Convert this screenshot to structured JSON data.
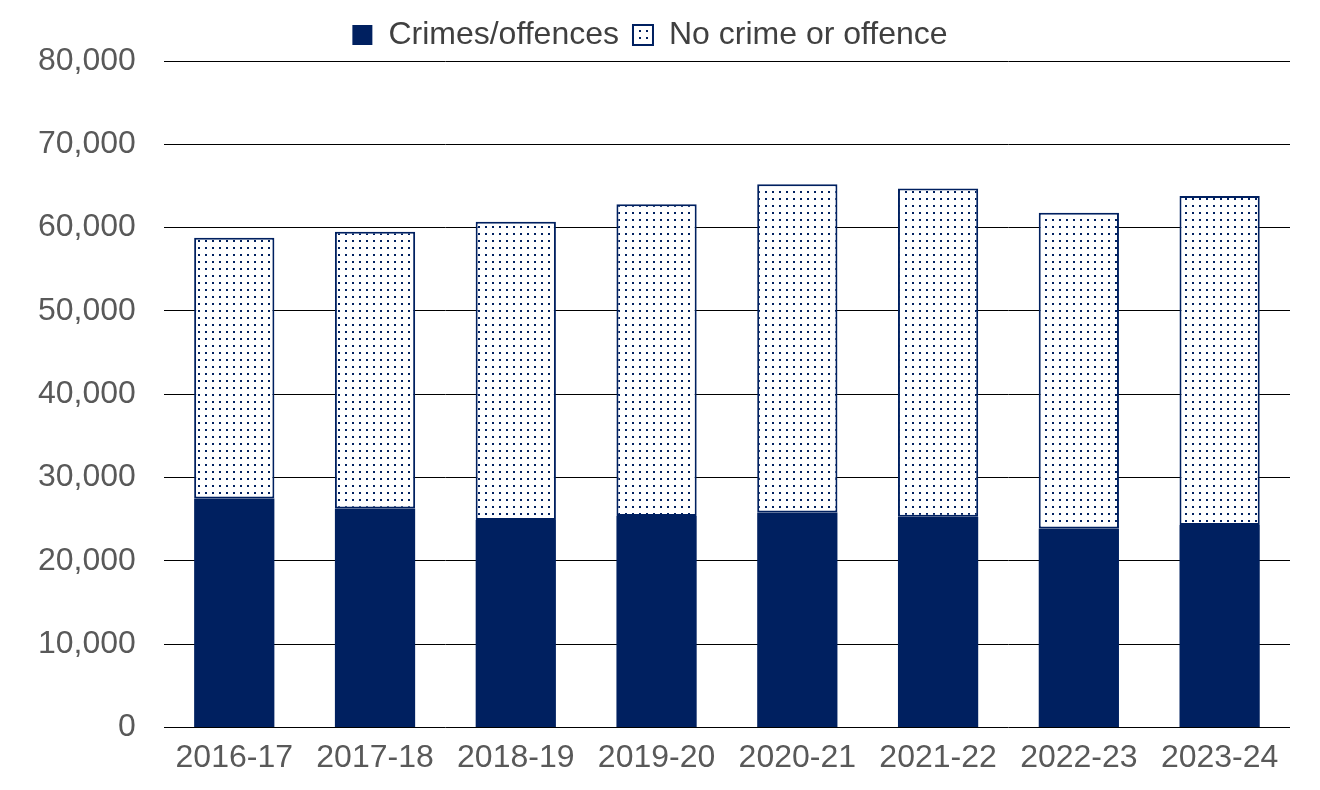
{
  "chart_data": {
    "type": "bar",
    "stacked": true,
    "grid": true,
    "legend": "top",
    "categories": [
      "2016-17",
      "2017-18",
      "2018-19",
      "2019-20",
      "2020-21",
      "2021-22",
      "2022-23",
      "2023-24"
    ],
    "series": [
      {
        "name": "Crimes/offences",
        "color": "#002060",
        "values": [
          27500,
          26300,
          24900,
          25400,
          25800,
          25300,
          23900,
          24300
        ]
      },
      {
        "name": "No crime or offence",
        "color": "#002060",
        "values": [
          31300,
          33200,
          35800,
          37400,
          39400,
          39400,
          37900,
          39500
        ]
      }
    ],
    "ylim": [
      0,
      80000
    ],
    "yticks": [
      0,
      {
        "value": 10000,
        "label": "10,000"
      },
      {
        "value": 20000,
        "label": "20,000"
      },
      {
        "value": 30000,
        "label": "30,000"
      },
      {
        "value": 40000,
        "label": "40,000"
      },
      {
        "value": 50000,
        "label": "50,000"
      },
      {
        "value": 60000,
        "label": "60,000"
      },
      {
        "value": 70000,
        "label": "70,000"
      },
      {
        "value": 80000,
        "label": "80,000"
      }
    ]
  }
}
